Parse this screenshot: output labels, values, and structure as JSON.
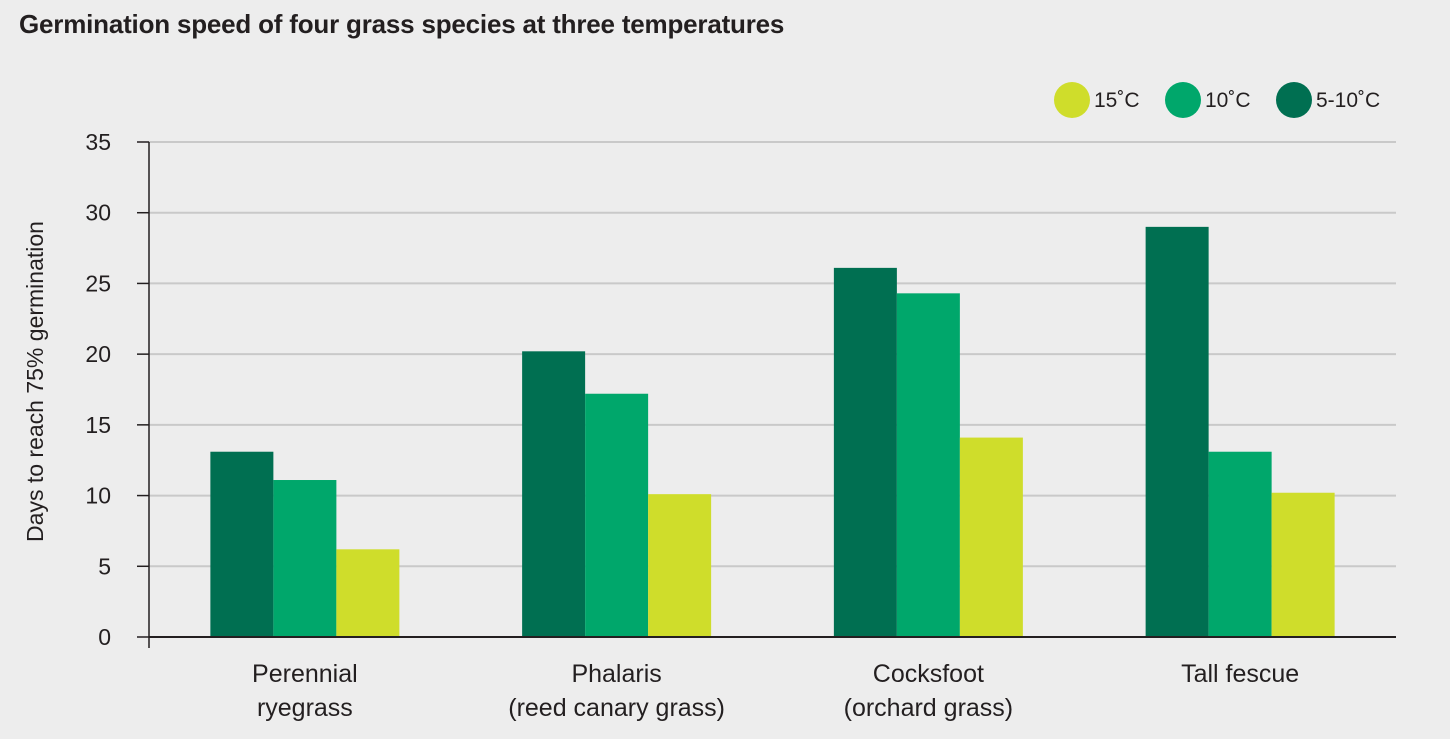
{
  "chart_data": {
    "type": "bar",
    "title": "Germination speed of four grass species at three temperatures",
    "xlabel": "",
    "ylabel": "Days to reach 75% germination",
    "ylim": [
      0,
      35
    ],
    "yticks": [
      0,
      5,
      10,
      15,
      20,
      25,
      30,
      35
    ],
    "grid": true,
    "legend_position": "top-right",
    "categories": [
      [
        "Perennial",
        "ryegrass"
      ],
      [
        "Phalaris",
        "(reed canary grass)"
      ],
      [
        "Cocksfoot",
        "(orchard grass)"
      ],
      [
        "Tall fescue"
      ]
    ],
    "series": [
      {
        "name": "5-10˚C",
        "color": "#006f51",
        "values": [
          13.1,
          20.2,
          26.1,
          29.0
        ]
      },
      {
        "name": "10˚C",
        "color": "#00a76b",
        "values": [
          11.1,
          17.2,
          24.3,
          13.1
        ]
      },
      {
        "name": "15˚C",
        "color": "#cfdd2b",
        "values": [
          6.2,
          10.1,
          14.1,
          10.2
        ]
      }
    ],
    "legend_order": [
      "15˚C",
      "10˚C",
      "5-10˚C"
    ]
  }
}
